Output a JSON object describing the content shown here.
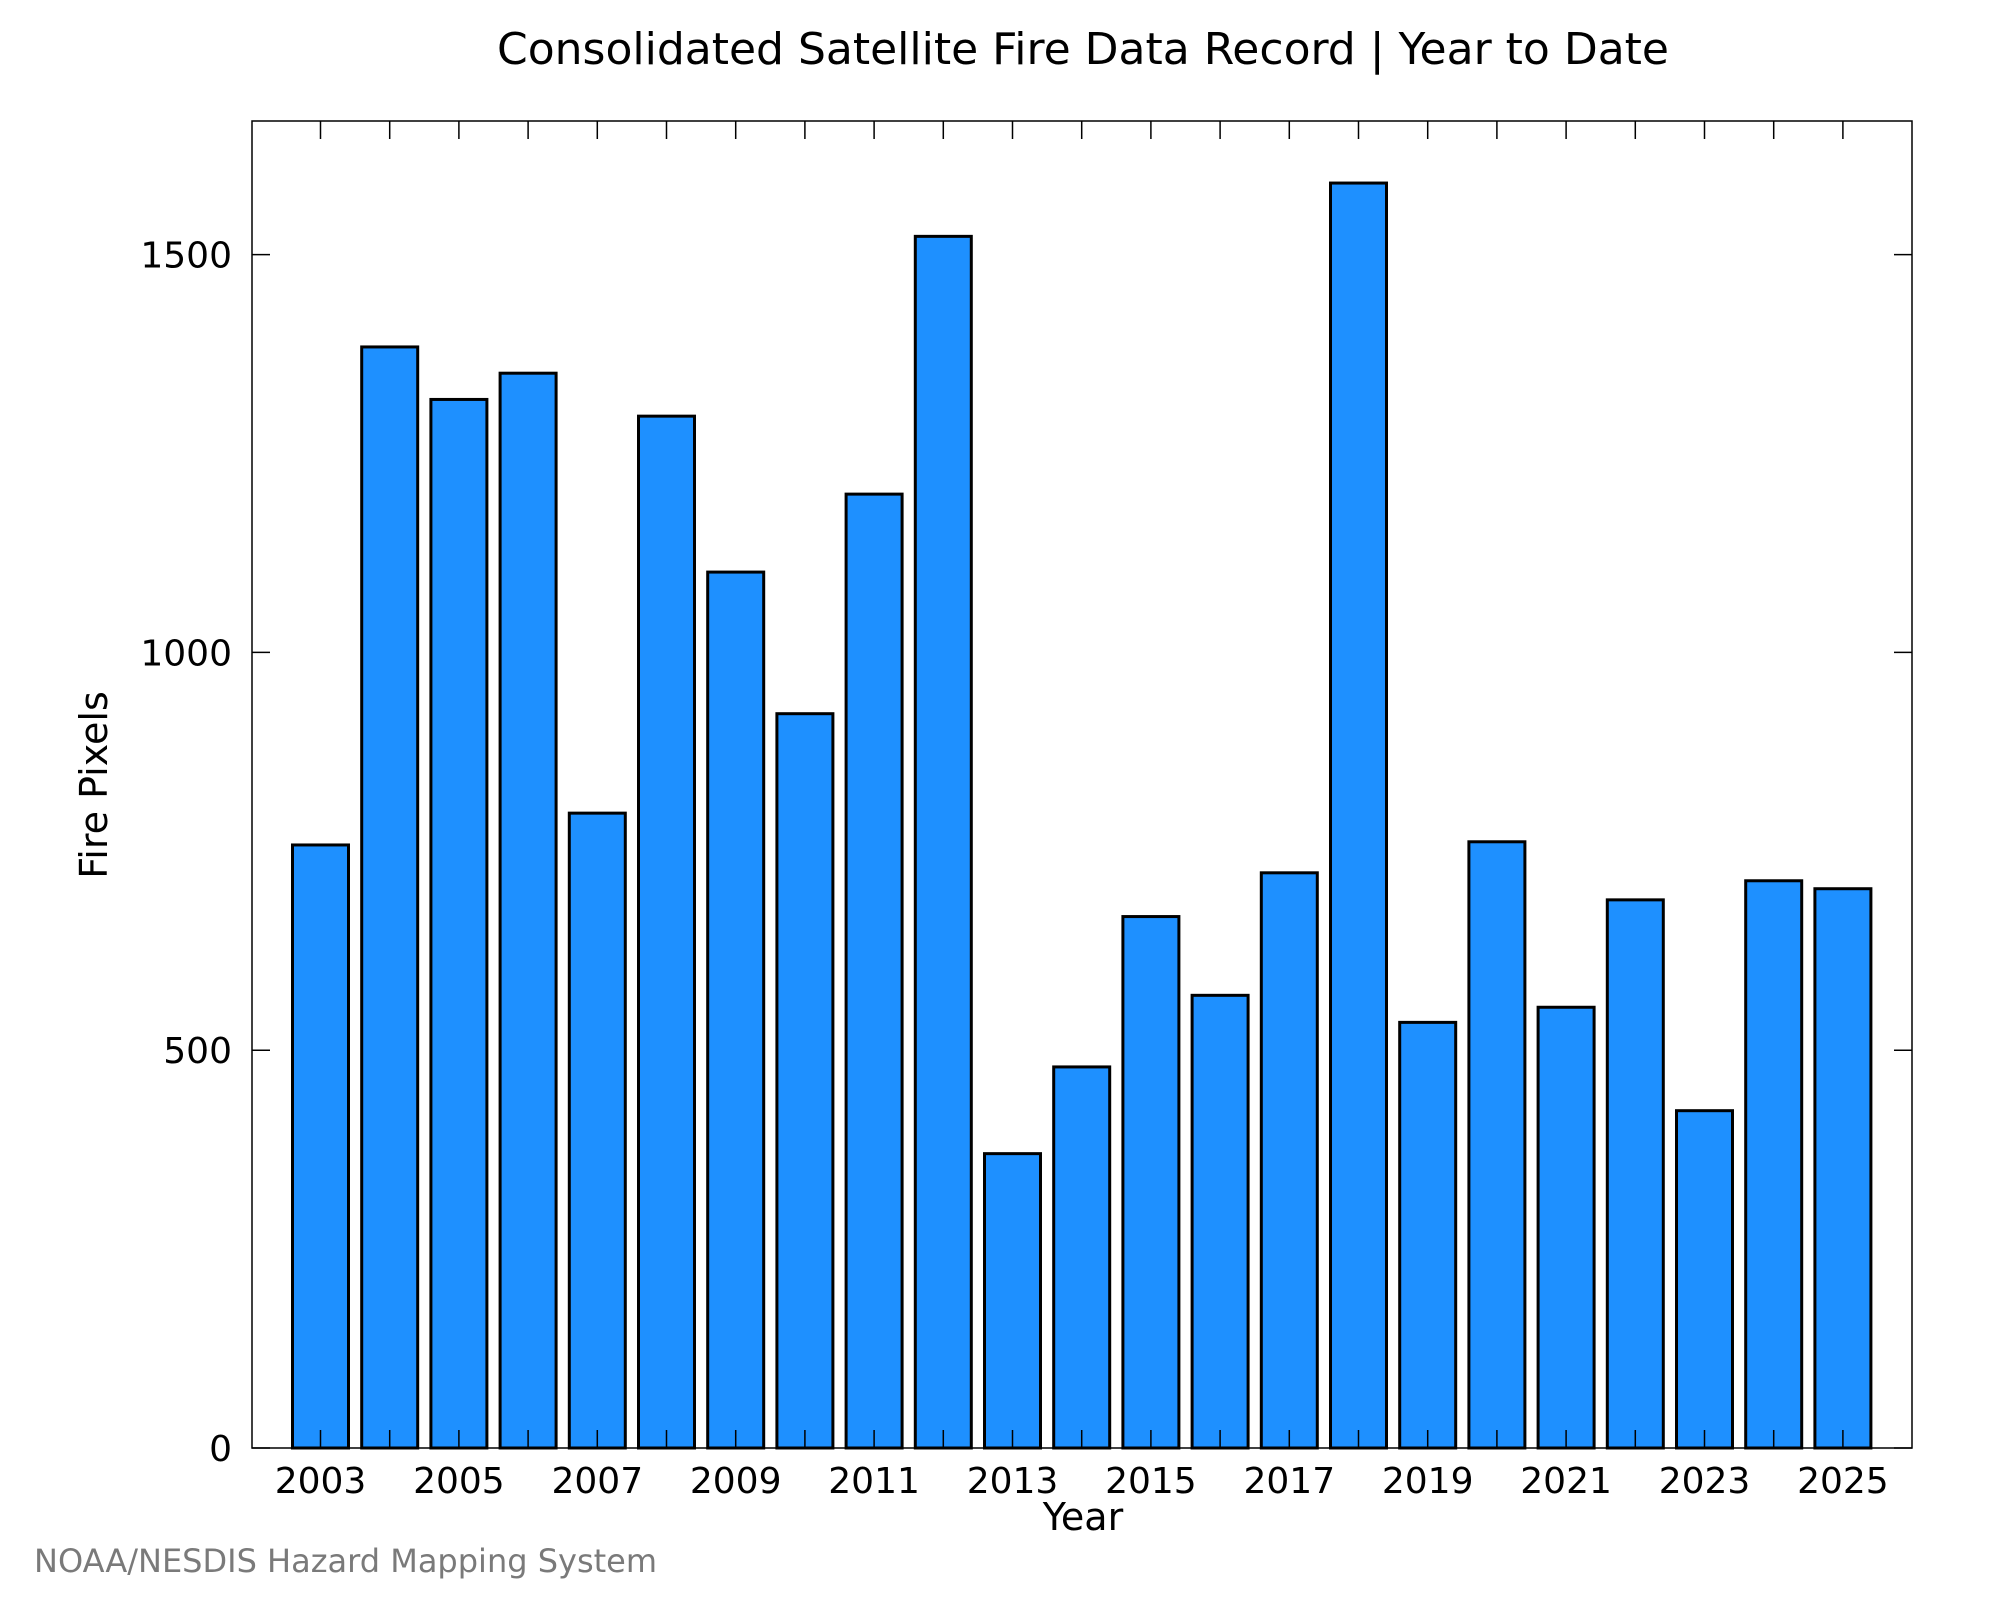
{
  "chart_data": {
    "type": "bar",
    "title": "Consolidated Satellite Fire Data Record | Year to Date",
    "xlabel": "Year",
    "ylabel": "Fire Pixels",
    "categories": [
      "2003",
      "2004",
      "2005",
      "2006",
      "2007",
      "2008",
      "2009",
      "2010",
      "2011",
      "2012",
      "2013",
      "2014",
      "2015",
      "2016",
      "2017",
      "2018",
      "2019",
      "2020",
      "2021",
      "2022",
      "2023",
      "2024",
      "2025"
    ],
    "values": [
      758,
      1384,
      1318,
      1351,
      798,
      1297,
      1101,
      923,
      1199,
      1523,
      370,
      479,
      668,
      569,
      723,
      1590,
      535,
      762,
      554,
      689,
      424,
      713,
      703
    ],
    "x_tick_labels": [
      "2003",
      "2005",
      "2007",
      "2009",
      "2011",
      "2013",
      "2015",
      "2017",
      "2019",
      "2021",
      "2023",
      "2025"
    ],
    "y_ticks": [
      0,
      500,
      1000,
      1500
    ],
    "ylim": [
      0,
      1668
    ],
    "grid": false,
    "bar_color": "#1e90ff",
    "source": "NOAA/NESDIS Hazard Mapping System"
  }
}
